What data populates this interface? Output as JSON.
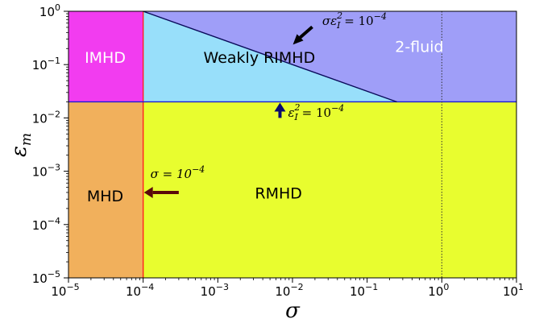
{
  "chart_data": {
    "type": "area",
    "title": "",
    "xlabel": "σ",
    "ylabel_main": "ε",
    "ylabel_sub": "m",
    "xscale": "log",
    "yscale": "log",
    "xlim": [
      1e-05,
      10
    ],
    "ylim": [
      1e-05,
      1
    ],
    "x_ticks": [
      {
        "value": 1e-05,
        "base": "10",
        "exp": "−5"
      },
      {
        "value": 0.0001,
        "base": "10",
        "exp": "−4"
      },
      {
        "value": 0.001,
        "base": "10",
        "exp": "−3"
      },
      {
        "value": 0.01,
        "base": "10",
        "exp": "−2"
      },
      {
        "value": 0.1,
        "base": "10",
        "exp": "−1"
      },
      {
        "value": 1,
        "base": "10",
        "exp": "0"
      },
      {
        "value": 10,
        "base": "10",
        "exp": "1"
      }
    ],
    "y_ticks": [
      {
        "value": 1e-05,
        "base": "10",
        "exp": "−5"
      },
      {
        "value": 0.0001,
        "base": "10",
        "exp": "−4"
      },
      {
        "value": 0.001,
        "base": "10",
        "exp": "−3"
      },
      {
        "value": 0.01,
        "base": "10",
        "exp": "−2"
      },
      {
        "value": 0.1,
        "base": "10",
        "exp": "−1"
      },
      {
        "value": 1,
        "base": "10",
        "exp": "0"
      }
    ],
    "boundaries": {
      "sigma_vertical": 0.0001,
      "epsilon_horizontal": 0.02,
      "sigma_unity": 1
    },
    "regions": [
      {
        "name": "IMHD",
        "color": "#f23cf0",
        "text_color": "#ffffff",
        "label_at": [
          3.1e-05,
          0.13
        ]
      },
      {
        "name": "Weakly RIMHD",
        "color": "#98dffa",
        "text_color": "#000000",
        "label_at": [
          0.0036,
          0.13
        ]
      },
      {
        "name": "2-fluid",
        "color": "#9f9ef8",
        "text_color": "#ffffff",
        "label_at": [
          0.5,
          0.21
        ]
      },
      {
        "name": "MHD",
        "color": "#f1b05c",
        "text_color": "#000000",
        "label_at": [
          3.1e-05,
          0.00033
        ]
      },
      {
        "name": "RMHD",
        "color": "#e8fd2f",
        "text_color": "#000000",
        "label_at": [
          0.0065,
          0.00037
        ]
      }
    ],
    "annotations": [
      {
        "name": "sigma",
        "lhs": "σ = 10",
        "exp": "−4",
        "color": "#5a0a0a"
      },
      {
        "name": "eps",
        "lhs": "ε",
        "sub": "I",
        "sup": "2",
        "rhs": " = 10",
        "exp": "−4",
        "color": "#0a0a6e"
      },
      {
        "name": "sigeps",
        "lhs": "σε",
        "sub": "I",
        "sup": "2",
        "rhs": " = 10",
        "exp": "−4",
        "color": "#000000"
      }
    ]
  }
}
